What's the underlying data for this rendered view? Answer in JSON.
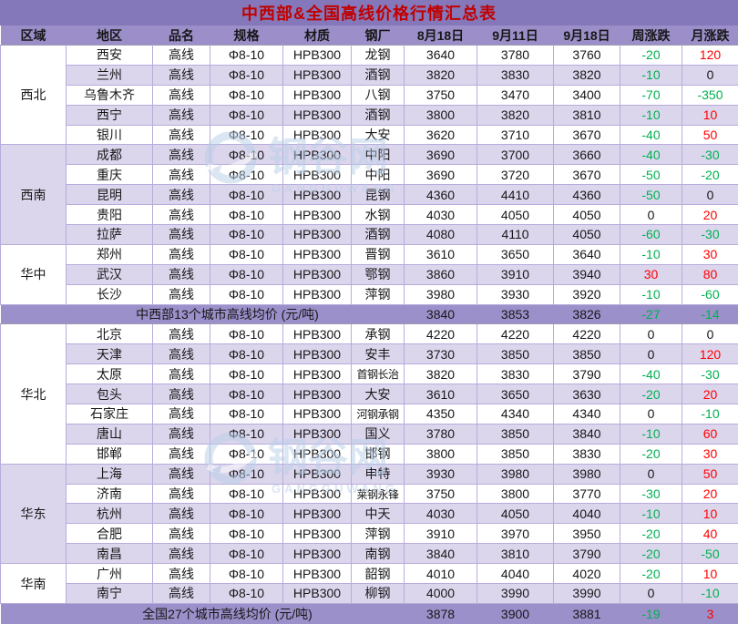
{
  "title": "中西部&全国高线价格行情汇总表",
  "columns": [
    "区域",
    "地区",
    "品名",
    "规格",
    "材质",
    "钢厂",
    "8月18日",
    "9月11日",
    "9月18日",
    "周涨跌",
    "月涨跌"
  ],
  "watermark": {
    "cn": "钢谷网",
    "en": "GANGGUWANG"
  },
  "colors": {
    "title_bg": "#8478BA",
    "title_text": "#C00000",
    "header_bg": "#9C8FC9",
    "summary_bg": "#9C90CA",
    "row_alt_bg": "#DCD6ED",
    "border": "#B9ABDC",
    "positive": "#FF0000",
    "negative": "#00B050",
    "watermark": "#B9CFE9"
  },
  "sections": [
    {
      "region": "西北",
      "rows": [
        {
          "city": "西安",
          "product": "高线",
          "spec": "Φ8-10",
          "material": "HPB300",
          "mill": "龙钢",
          "aug18": 3640,
          "sep11": 3780,
          "sep18": 3760,
          "weekly": -20,
          "monthly": 120
        },
        {
          "city": "兰州",
          "product": "高线",
          "spec": "Φ8-10",
          "material": "HPB300",
          "mill": "酒钢",
          "aug18": 3820,
          "sep11": 3830,
          "sep18": 3820,
          "weekly": -10,
          "monthly": 0
        },
        {
          "city": "乌鲁木齐",
          "product": "高线",
          "spec": "Φ8-10",
          "material": "HPB300",
          "mill": "八钢",
          "aug18": 3750,
          "sep11": 3470,
          "sep18": 3400,
          "weekly": -70,
          "monthly": -350
        },
        {
          "city": "西宁",
          "product": "高线",
          "spec": "Φ8-10",
          "material": "HPB300",
          "mill": "酒钢",
          "aug18": 3800,
          "sep11": 3820,
          "sep18": 3810,
          "weekly": -10,
          "monthly": 10
        },
        {
          "city": "银川",
          "product": "高线",
          "spec": "Φ8-10",
          "material": "HPB300",
          "mill": "大安",
          "aug18": 3620,
          "sep11": 3710,
          "sep18": 3670,
          "weekly": -40,
          "monthly": 50
        }
      ]
    },
    {
      "region": "西南",
      "rows": [
        {
          "city": "成都",
          "product": "高线",
          "spec": "Φ8-10",
          "material": "HPB300",
          "mill": "中阳",
          "aug18": 3690,
          "sep11": 3700,
          "sep18": 3660,
          "weekly": -40,
          "monthly": -30
        },
        {
          "city": "重庆",
          "product": "高线",
          "spec": "Φ8-10",
          "material": "HPB300",
          "mill": "中阳",
          "aug18": 3690,
          "sep11": 3720,
          "sep18": 3670,
          "weekly": -50,
          "monthly": -20
        },
        {
          "city": "昆明",
          "product": "高线",
          "spec": "Φ8-10",
          "material": "HPB300",
          "mill": "昆钢",
          "aug18": 4360,
          "sep11": 4410,
          "sep18": 4360,
          "weekly": -50,
          "monthly": 0
        },
        {
          "city": "贵阳",
          "product": "高线",
          "spec": "Φ8-10",
          "material": "HPB300",
          "mill": "水钢",
          "aug18": 4030,
          "sep11": 4050,
          "sep18": 4050,
          "weekly": 0,
          "monthly": 20
        },
        {
          "city": "拉萨",
          "product": "高线",
          "spec": "Φ8-10",
          "material": "HPB300",
          "mill": "酒钢",
          "aug18": 4080,
          "sep11": 4110,
          "sep18": 4050,
          "weekly": -60,
          "monthly": -30
        }
      ]
    },
    {
      "region": "华中",
      "rows": [
        {
          "city": "郑州",
          "product": "高线",
          "spec": "Φ8-10",
          "material": "HPB300",
          "mill": "晋钢",
          "aug18": 3610,
          "sep11": 3650,
          "sep18": 3640,
          "weekly": -10,
          "monthly": 30
        },
        {
          "city": "武汉",
          "product": "高线",
          "spec": "Φ8-10",
          "material": "HPB300",
          "mill": "鄂钢",
          "aug18": 3860,
          "sep11": 3910,
          "sep18": 3940,
          "weekly": 30,
          "monthly": 80
        },
        {
          "city": "长沙",
          "product": "高线",
          "spec": "Φ8-10",
          "material": "HPB300",
          "mill": "萍钢",
          "aug18": 3980,
          "sep11": 3930,
          "sep18": 3920,
          "weekly": -10,
          "monthly": -60
        }
      ]
    },
    {
      "summary": true,
      "label": "中西部13个城市高线均价 (元/吨)",
      "aug18": 3840,
      "sep11": 3853,
      "sep18": 3826,
      "weekly": -27,
      "monthly": -14
    },
    {
      "region": "华北",
      "rows": [
        {
          "city": "北京",
          "product": "高线",
          "spec": "Φ8-10",
          "material": "HPB300",
          "mill": "承钢",
          "aug18": 4220,
          "sep11": 4220,
          "sep18": 4220,
          "weekly": 0,
          "monthly": 0
        },
        {
          "city": "天津",
          "product": "高线",
          "spec": "Φ8-10",
          "material": "HPB300",
          "mill": "安丰",
          "aug18": 3730,
          "sep11": 3850,
          "sep18": 3850,
          "weekly": 0,
          "monthly": 120
        },
        {
          "city": "太原",
          "product": "高线",
          "spec": "Φ8-10",
          "material": "HPB300",
          "mill": "首钢长治",
          "aug18": 3820,
          "sep11": 3830,
          "sep18": 3790,
          "weekly": -40,
          "monthly": -30
        },
        {
          "city": "包头",
          "product": "高线",
          "spec": "Φ8-10",
          "material": "HPB300",
          "mill": "大安",
          "aug18": 3610,
          "sep11": 3650,
          "sep18": 3630,
          "weekly": -20,
          "monthly": 20
        },
        {
          "city": "石家庄",
          "product": "高线",
          "spec": "Φ8-10",
          "material": "HPB300",
          "mill": "河钢承钢",
          "aug18": 4350,
          "sep11": 4340,
          "sep18": 4340,
          "weekly": 0,
          "monthly": -10
        },
        {
          "city": "唐山",
          "product": "高线",
          "spec": "Φ8-10",
          "material": "HPB300",
          "mill": "国义",
          "aug18": 3780,
          "sep11": 3850,
          "sep18": 3840,
          "weekly": -10,
          "monthly": 60
        },
        {
          "city": "邯郸",
          "product": "高线",
          "spec": "Φ8-10",
          "material": "HPB300",
          "mill": "邯钢",
          "aug18": 3800,
          "sep11": 3850,
          "sep18": 3830,
          "weekly": -20,
          "monthly": 30
        }
      ]
    },
    {
      "region": "华东",
      "rows": [
        {
          "city": "上海",
          "product": "高线",
          "spec": "Φ8-10",
          "material": "HPB300",
          "mill": "申特",
          "aug18": 3930,
          "sep11": 3980,
          "sep18": 3980,
          "weekly": 0,
          "monthly": 50
        },
        {
          "city": "济南",
          "product": "高线",
          "spec": "Φ8-10",
          "material": "HPB300",
          "mill": "莱钢永锋",
          "aug18": 3750,
          "sep11": 3800,
          "sep18": 3770,
          "weekly": -30,
          "monthly": 20
        },
        {
          "city": "杭州",
          "product": "高线",
          "spec": "Φ8-10",
          "material": "HPB300",
          "mill": "中天",
          "aug18": 4030,
          "sep11": 4050,
          "sep18": 4040,
          "weekly": -10,
          "monthly": 10
        },
        {
          "city": "合肥",
          "product": "高线",
          "spec": "Φ8-10",
          "material": "HPB300",
          "mill": "萍钢",
          "aug18": 3910,
          "sep11": 3970,
          "sep18": 3950,
          "weekly": -20,
          "monthly": 40
        },
        {
          "city": "南昌",
          "product": "高线",
          "spec": "Φ8-10",
          "material": "HPB300",
          "mill": "南钢",
          "aug18": 3840,
          "sep11": 3810,
          "sep18": 3790,
          "weekly": -20,
          "monthly": -50
        }
      ]
    },
    {
      "region": "华南",
      "rows": [
        {
          "city": "广州",
          "product": "高线",
          "spec": "Φ8-10",
          "material": "HPB300",
          "mill": "韶钢",
          "aug18": 4010,
          "sep11": 4040,
          "sep18": 4020,
          "weekly": -20,
          "monthly": 10
        },
        {
          "city": "南宁",
          "product": "高线",
          "spec": "Φ8-10",
          "material": "HPB300",
          "mill": "柳钢",
          "aug18": 4000,
          "sep11": 3990,
          "sep18": 3990,
          "weekly": 0,
          "monthly": -10
        }
      ]
    },
    {
      "summary": true,
      "label": "全国27个城市高线均价 (元/吨)",
      "aug18": 3878,
      "sep11": 3900,
      "sep18": 3881,
      "weekly": -19,
      "monthly": 3
    }
  ]
}
